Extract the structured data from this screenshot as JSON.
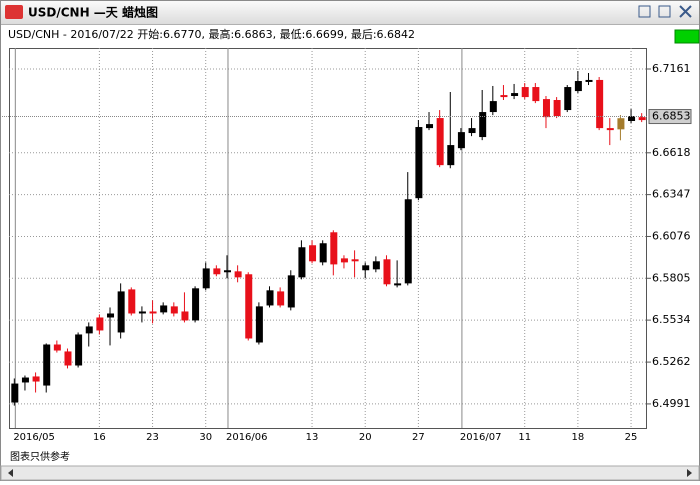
{
  "window": {
    "title": "USD/CNH —天 蜡烛图",
    "info": "USD/CNH - 2016/07/22 开始:6.6770, 最高:6.6863, 最低:6.6699, 最后:6.6842",
    "footer": "图表只供参考"
  },
  "chart_data": {
    "type": "candlestick",
    "categories": [
      "2016/05",
      null,
      null,
      null,
      null,
      null,
      null,
      null,
      "16",
      null,
      null,
      null,
      null,
      "23",
      null,
      null,
      null,
      null,
      "30",
      null,
      "2016/06",
      null,
      null,
      null,
      null,
      null,
      null,
      null,
      "13",
      null,
      null,
      null,
      null,
      "20",
      null,
      null,
      null,
      null,
      "27",
      null,
      null,
      null,
      "2016/07",
      null,
      null,
      null,
      null,
      null,
      "11",
      null,
      null,
      null,
      null,
      "18",
      null,
      null,
      null,
      null,
      "25",
      null
    ],
    "open": [
      6.5,
      6.513,
      6.5169,
      6.511,
      6.5376,
      6.5331,
      6.524,
      6.5448,
      6.5551,
      6.5551,
      6.5454,
      6.5733,
      6.5577,
      6.559,
      6.5584,
      6.5623,
      6.559,
      6.5532,
      6.574,
      6.5869,
      6.5844,
      6.585,
      6.5831,
      6.5389,
      6.5629,
      6.572,
      6.5616,
      6.5811,
      6.6019,
      6.5908,
      6.6103,
      6.5934,
      6.5928,
      6.5857,
      6.5863,
      6.5928,
      6.5759,
      6.5772,
      6.6324,
      6.6778,
      6.6843,
      6.6538,
      6.6648,
      6.6746,
      6.672,
      6.6882,
      6.6992,
      6.6986,
      6.7044,
      6.7044,
      6.6966,
      6.696,
      6.6895,
      6.7018,
      6.7077,
      6.709,
      6.6778,
      6.677,
      6.6824,
      6.6849
    ],
    "high": [
      6.5156,
      6.5175,
      6.5195,
      6.5383,
      6.5402,
      6.535,
      6.5454,
      6.5519,
      6.5571,
      6.5616,
      6.5772,
      6.5746,
      6.5623,
      6.5662,
      6.5649,
      6.5649,
      6.5714,
      6.5753,
      6.5908,
      6.5889,
      6.5954,
      6.5889,
      6.5844,
      6.5649,
      6.5753,
      6.5746,
      6.5857,
      6.6051,
      6.6051,
      6.6051,
      6.6116,
      6.5954,
      6.5986,
      6.5908,
      6.5947,
      6.5954,
      6.5921,
      6.6493,
      6.683,
      6.6882,
      6.6895,
      6.7012,
      6.6778,
      6.6843,
      6.7025,
      6.7051,
      6.7057,
      6.7064,
      6.707,
      6.707,
      6.6986,
      6.6979,
      6.7057,
      6.7148,
      6.7135,
      6.7109,
      6.6843,
      6.6863,
      6.6901,
      6.6875
    ],
    "low": [
      6.498,
      6.5078,
      6.5065,
      6.5065,
      6.5324,
      6.5221,
      6.5227,
      6.5363,
      6.5441,
      6.537,
      6.5415,
      6.5564,
      6.5519,
      6.5513,
      6.5571,
      6.5558,
      6.5519,
      6.5519,
      6.5727,
      6.5818,
      6.5805,
      6.5779,
      6.5402,
      6.5376,
      6.5616,
      6.5616,
      6.5597,
      6.5798,
      6.5902,
      6.5889,
      6.5824,
      6.5869,
      6.5811,
      6.5805,
      6.5844,
      6.5753,
      6.5746,
      6.5759,
      6.6311,
      6.6765,
      6.6525,
      6.6518,
      6.6635,
      6.6726,
      6.67,
      6.6862,
      6.696,
      6.6966,
      6.6966,
      6.694,
      6.6778,
      6.6843,
      6.6882,
      6.7005,
      6.7057,
      6.6765,
      6.6668,
      6.6699,
      6.6811,
      6.6817
    ],
    "close": [
      6.5123,
      6.5162,
      6.5136,
      6.5376,
      6.5337,
      6.524,
      6.5441,
      6.5493,
      6.5467,
      6.5577,
      6.572,
      6.5577,
      6.559,
      6.5577,
      6.5629,
      6.5577,
      6.5532,
      6.574,
      6.5869,
      6.5831,
      6.5857,
      6.5811,
      6.5415,
      6.5623,
      6.5727,
      6.5629,
      6.5824,
      6.6006,
      6.5915,
      6.6032,
      6.5895,
      6.5908,
      6.5915,
      6.5889,
      6.5915,
      6.5766,
      6.5772,
      6.6317,
      6.6785,
      6.6804,
      6.6538,
      6.6668,
      6.6752,
      6.6778,
      6.6882,
      6.6953,
      6.6979,
      6.7005,
      6.6979,
      6.6953,
      6.6849,
      6.6856,
      6.7044,
      6.7083,
      6.709,
      6.6778,
      6.6765,
      6.6842,
      6.6856,
      6.683
    ],
    "up_color": "#000000",
    "down_color": "#e8101a",
    "selected": 57,
    "selected_color": "#a57c2c",
    "last_price": 6.6853,
    "ylim": [
      6.4835,
      6.7297
    ],
    "yticks": [
      6.4991,
      6.5262,
      6.5534,
      6.5805,
      6.6076,
      6.6347,
      6.6618,
      6.7161
    ],
    "grid": true
  }
}
